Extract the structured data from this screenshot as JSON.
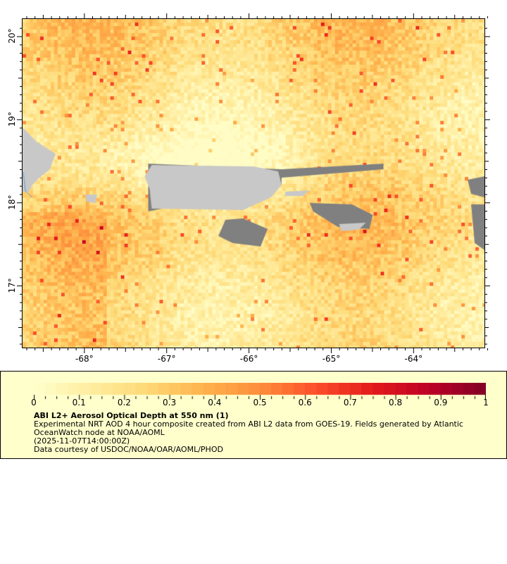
{
  "map": {
    "projection": "lat-lon",
    "lon_range": [
      -68.76,
      -63.13
    ],
    "lat_range": [
      16.25,
      20.22
    ],
    "lat_ticks": [
      {
        "value": 17,
        "label": "17°"
      },
      {
        "value": 18,
        "label": "18°"
      },
      {
        "value": 19,
        "label": "19°"
      },
      {
        "value": 20,
        "label": "20°"
      }
    ],
    "lon_ticks": [
      {
        "value": -68,
        "label": "-68°"
      },
      {
        "value": -67,
        "label": "-67°"
      },
      {
        "value": -66,
        "label": "-66°"
      },
      {
        "value": -65,
        "label": "-65°"
      },
      {
        "value": -64,
        "label": "-64°"
      }
    ],
    "land_color": "#c8c8c8",
    "missing_color": "#808080",
    "border_color": "#6699cc"
  },
  "legend": {
    "colorbar_range": [
      0,
      1
    ],
    "colorbar_labels": [
      "0",
      "0.1",
      "0.2",
      "0.3",
      "0.4",
      "0.5",
      "0.6",
      "0.7",
      "0.8",
      "0.9",
      "1"
    ],
    "colormap": [
      "#ffffcc",
      "#ffeda0",
      "#fed976",
      "#feb24c",
      "#fd8d3c",
      "#fc4e2a",
      "#e31a1c",
      "#bd0026",
      "#800026"
    ],
    "title": "ABI L2+ Aerosol Optical Depth at 550 nm (1)",
    "line1": "Experimental NRT AOD 4 hour composite created from ABI L2 data from GOES-19. Fields generated by Atlantic",
    "line2": "OceanWatch node at NOAA/AOML",
    "line3": "(2025-11-07T14:00:00Z)",
    "line4": "Data courtesy of USDOC/NOAA/OAR/AOML/PHOD"
  }
}
